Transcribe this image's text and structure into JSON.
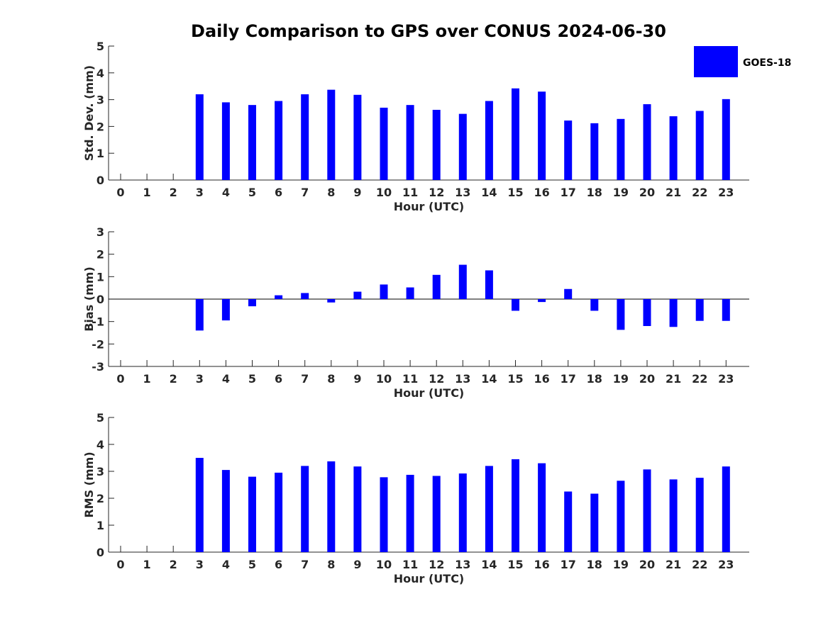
{
  "chart_data": [
    {
      "type": "bar",
      "panel": "std_dev",
      "title": "Daily Comparison to GPS over CONUS 2024-06-30",
      "xlabel": "Hour (UTC)",
      "ylabel": "Std. Dev. (mm)",
      "categories": [
        "0",
        "1",
        "2",
        "3",
        "4",
        "5",
        "6",
        "7",
        "8",
        "9",
        "10",
        "11",
        "12",
        "13",
        "14",
        "15",
        "16",
        "17",
        "18",
        "19",
        "20",
        "21",
        "22",
        "23"
      ],
      "series": [
        {
          "name": "GOES-18",
          "color": "#0000ff",
          "values": [
            null,
            null,
            null,
            3.2,
            2.9,
            2.8,
            2.95,
            3.2,
            3.37,
            3.18,
            2.7,
            2.8,
            2.62,
            2.47,
            2.95,
            3.42,
            3.3,
            2.22,
            2.12,
            2.28,
            2.83,
            2.38,
            2.58,
            3.02
          ]
        }
      ],
      "ylim": [
        0,
        5
      ],
      "yticks": [
        "0",
        "1",
        "2",
        "3",
        "4",
        "5"
      ],
      "legend": {
        "placement": "top-right",
        "entries": [
          "GOES-18"
        ]
      }
    },
    {
      "type": "bar",
      "panel": "bias",
      "xlabel": "Hour (UTC)",
      "ylabel": "Bias (mm)",
      "categories": [
        "0",
        "1",
        "2",
        "3",
        "4",
        "5",
        "6",
        "7",
        "8",
        "9",
        "10",
        "11",
        "12",
        "13",
        "14",
        "15",
        "16",
        "17",
        "18",
        "19",
        "20",
        "21",
        "22",
        "23"
      ],
      "series": [
        {
          "name": "GOES-18",
          "color": "#0000ff",
          "values": [
            null,
            null,
            null,
            -1.4,
            -0.95,
            -0.32,
            0.17,
            0.27,
            -0.15,
            0.33,
            0.65,
            0.52,
            1.08,
            1.53,
            1.28,
            -0.52,
            -0.13,
            0.45,
            -0.52,
            -1.37,
            -1.2,
            -1.24,
            -0.97,
            -0.97
          ]
        }
      ],
      "ylim": [
        -3,
        3
      ],
      "yticks": [
        "-3",
        "-2",
        "-1",
        "0",
        "1",
        "2",
        "3"
      ],
      "zero_line": true
    },
    {
      "type": "bar",
      "panel": "rms",
      "xlabel": "Hour (UTC)",
      "ylabel": "RMS (mm)",
      "categories": [
        "0",
        "1",
        "2",
        "3",
        "4",
        "5",
        "6",
        "7",
        "8",
        "9",
        "10",
        "11",
        "12",
        "13",
        "14",
        "15",
        "16",
        "17",
        "18",
        "19",
        "20",
        "21",
        "22",
        "23"
      ],
      "series": [
        {
          "name": "GOES-18",
          "color": "#0000ff",
          "values": [
            null,
            null,
            null,
            3.5,
            3.05,
            2.8,
            2.95,
            3.2,
            3.37,
            3.18,
            2.78,
            2.87,
            2.83,
            2.92,
            3.2,
            3.45,
            3.3,
            2.25,
            2.17,
            2.65,
            3.07,
            2.7,
            2.76,
            3.18
          ]
        }
      ],
      "ylim": [
        0,
        5
      ],
      "yticks": [
        "0",
        "1",
        "2",
        "3",
        "4",
        "5"
      ]
    }
  ]
}
